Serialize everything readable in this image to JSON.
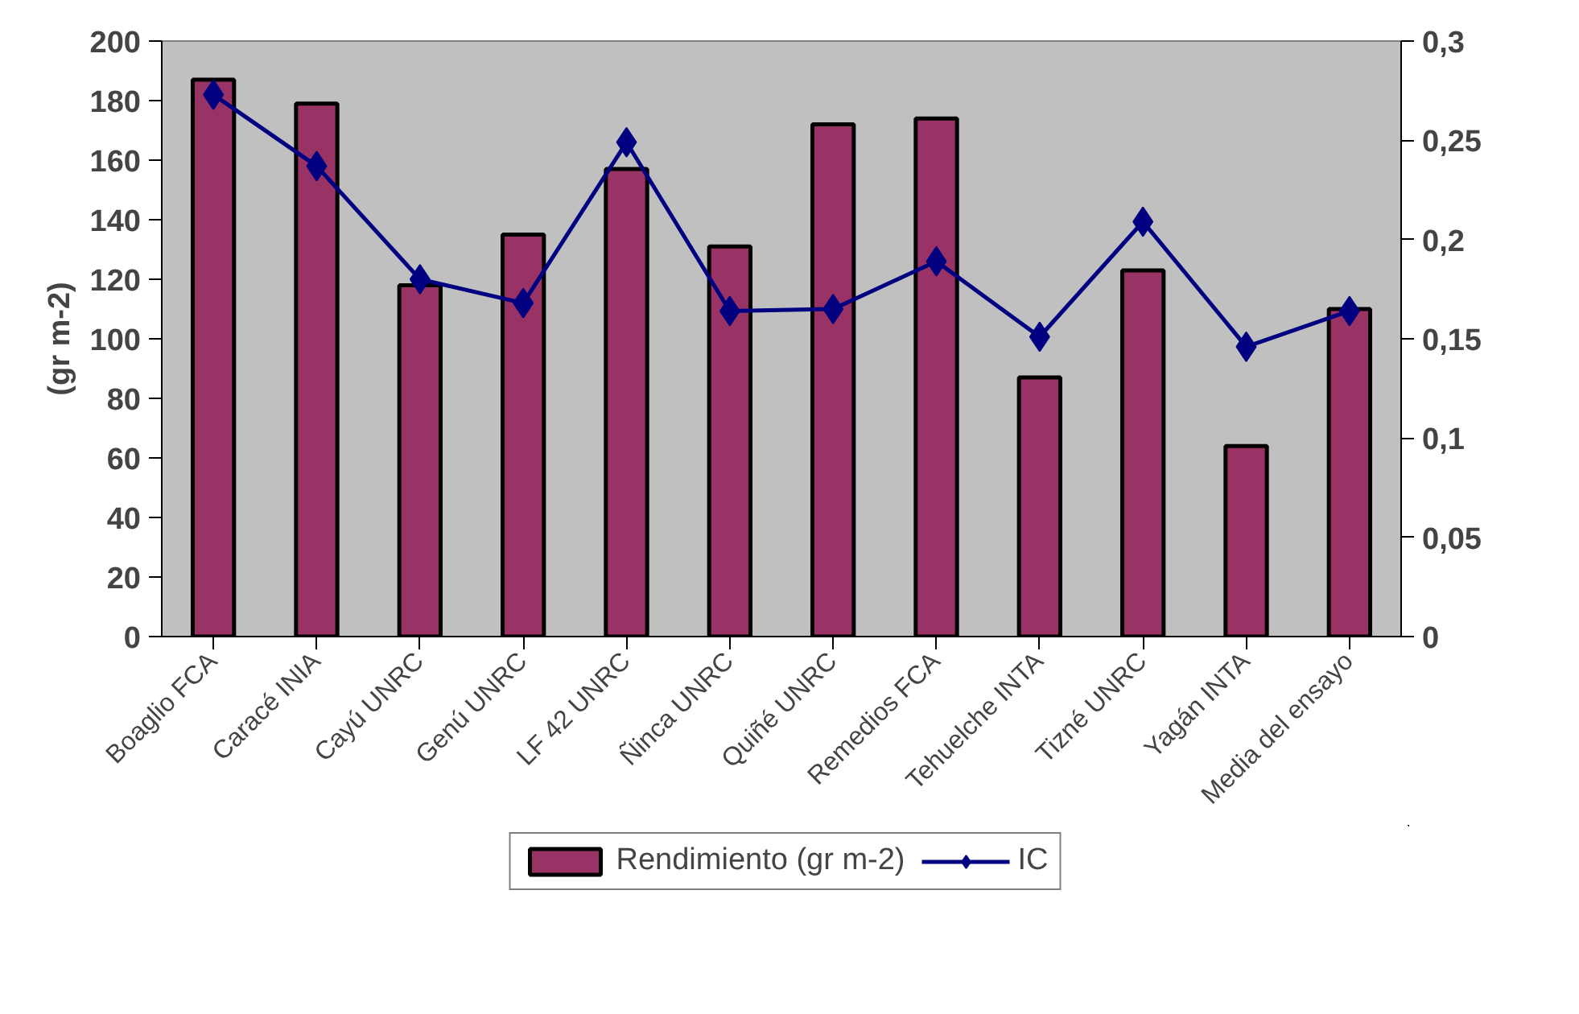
{
  "chart_data": {
    "type": "bar",
    "ylabel": "(gr m-2)",
    "categories": [
      "Boaglio FCA",
      "Caracé INIA",
      "Cayú UNRC",
      "Genú UNRC",
      "LF 42 UNRC",
      "Ñinca UNRC",
      "Quiñé UNRC",
      "Remedios FCA",
      "Tehuelche INTA",
      "Tizné UNRC",
      "Yagán INTA",
      "Media del ensayo"
    ],
    "series": [
      {
        "name": "Rendimiento (gr m-2)",
        "color": "#993366",
        "values": [
          187,
          179,
          118,
          135,
          157,
          131,
          172,
          174,
          87,
          123,
          64,
          110
        ]
      },
      {
        "name": "IC",
        "type": "line",
        "axis": "y2",
        "color": "#000080",
        "marker": "diamond",
        "values": [
          0.273,
          0.237,
          0.18,
          0.168,
          0.249,
          0.164,
          0.165,
          0.189,
          0.151,
          0.209,
          0.146,
          0.164
        ]
      }
    ],
    "ylim": [
      0,
      200
    ],
    "yticks": [
      0,
      20,
      40,
      60,
      80,
      100,
      120,
      140,
      160,
      180,
      200
    ],
    "y2lim": [
      0,
      0.3
    ],
    "y2ticks": [
      0,
      {
        "value": 0.05,
        "label": "0,05"
      },
      {
        "value": 0.1,
        "label": "0,1"
      },
      {
        "value": 0.15,
        "label": "0,15"
      },
      {
        "value": 0.2,
        "label": "0,2"
      },
      {
        "value": 0.25,
        "label": "0,25"
      },
      {
        "value": 0.3,
        "label": "0,3"
      }
    ],
    "grid": false,
    "legend": "bottom"
  }
}
